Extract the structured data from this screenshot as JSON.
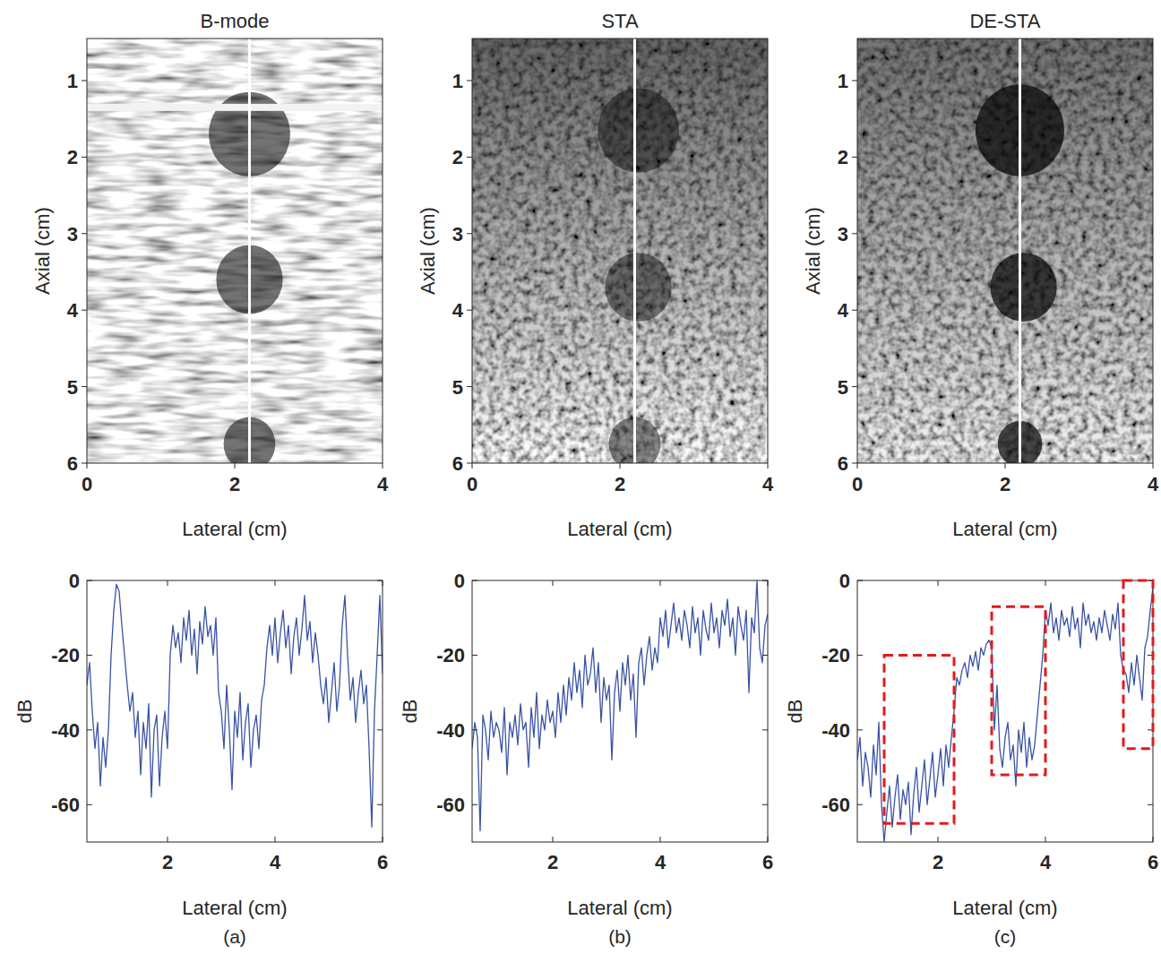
{
  "chart_data": [
    {
      "type": "image",
      "title": "B-mode",
      "x_label": "Lateral (cm)",
      "y_label": "Axial (cm)",
      "xlim": [
        0,
        4
      ],
      "ylim": [
        0.45,
        6
      ],
      "xticks": [
        0,
        2,
        4
      ],
      "yticks": [
        1,
        2,
        3,
        4,
        5,
        6
      ],
      "line_x": 2.2,
      "bright_line_z": 1.35,
      "cysts": [
        {
          "x": 2.2,
          "z": 1.7,
          "r": 0.55
        },
        {
          "x": 2.2,
          "z": 3.6,
          "r": 0.45
        },
        {
          "x": 2.2,
          "z": 5.75,
          "r": 0.35
        }
      ]
    },
    {
      "type": "image",
      "title": "STA",
      "x_label": "Lateral (cm)",
      "y_label": "Axial (cm)",
      "xlim": [
        0,
        4
      ],
      "ylim": [
        0.45,
        6
      ],
      "xticks": [
        0,
        2,
        4
      ],
      "yticks": [
        1,
        2,
        3,
        4,
        5,
        6
      ],
      "line_x": 2.2,
      "cysts": [
        {
          "x": 2.25,
          "z": 1.65,
          "r": 0.55
        },
        {
          "x": 2.25,
          "z": 3.7,
          "r": 0.45
        },
        {
          "x": 2.2,
          "z": 5.75,
          "r": 0.35
        }
      ]
    },
    {
      "type": "image",
      "title": "DE-STA",
      "x_label": "Lateral (cm)",
      "y_label": "Axial (cm)",
      "xlim": [
        0,
        4
      ],
      "ylim": [
        0.45,
        6
      ],
      "xticks": [
        0,
        2,
        4
      ],
      "yticks": [
        1,
        2,
        3,
        4,
        5,
        6
      ],
      "line_x": 2.2,
      "cysts": [
        {
          "x": 2.2,
          "z": 1.65,
          "r": 0.6
        },
        {
          "x": 2.25,
          "z": 3.7,
          "r": 0.45
        },
        {
          "x": 2.2,
          "z": 5.75,
          "r": 0.3
        }
      ]
    },
    {
      "type": "line",
      "x_label": "Lateral (cm)",
      "y_label": "dB",
      "panel_label": "(a)",
      "color": "#3a53a4",
      "xlim": [
        0.5,
        6
      ],
      "ylim": [
        -70,
        0
      ],
      "xticks": [
        2,
        4,
        6
      ],
      "yticks": [
        -60,
        -40,
        -20,
        0
      ],
      "x": [
        0.5,
        0.55,
        0.6,
        0.65,
        0.7,
        0.75,
        0.8,
        0.85,
        0.9,
        0.95,
        1,
        1.05,
        1.1,
        1.15,
        1.2,
        1.25,
        1.3,
        1.35,
        1.4,
        1.45,
        1.5,
        1.55,
        1.6,
        1.65,
        1.7,
        1.75,
        1.8,
        1.85,
        1.9,
        1.95,
        2,
        2.05,
        2.1,
        2.15,
        2.2,
        2.25,
        2.3,
        2.35,
        2.4,
        2.45,
        2.5,
        2.55,
        2.6,
        2.65,
        2.7,
        2.75,
        2.8,
        2.85,
        2.9,
        2.95,
        3,
        3.05,
        3.1,
        3.15,
        3.2,
        3.25,
        3.3,
        3.35,
        3.4,
        3.45,
        3.5,
        3.55,
        3.6,
        3.65,
        3.7,
        3.75,
        3.8,
        3.85,
        3.9,
        3.95,
        4,
        4.05,
        4.1,
        4.15,
        4.2,
        4.25,
        4.3,
        4.35,
        4.4,
        4.45,
        4.5,
        4.55,
        4.6,
        4.65,
        4.7,
        4.75,
        4.8,
        4.85,
        4.9,
        4.95,
        5,
        5.05,
        5.1,
        5.15,
        5.2,
        5.25,
        5.3,
        5.35,
        5.4,
        5.45,
        5.5,
        5.55,
        5.6,
        5.65,
        5.7,
        5.75,
        5.8,
        5.85,
        5.9,
        5.95,
        6
      ],
      "values": [
        -28,
        -22,
        -35,
        -45,
        -38,
        -55,
        -42,
        -50,
        -40,
        -20,
        -8,
        -1,
        -3,
        -12,
        -20,
        -28,
        -35,
        -30,
        -42,
        -35,
        -52,
        -38,
        -45,
        -33,
        -58,
        -40,
        -36,
        -55,
        -42,
        -35,
        -45,
        -20,
        -12,
        -18,
        -14,
        -22,
        -10,
        -16,
        -8,
        -20,
        -13,
        -25,
        -11,
        -17,
        -7,
        -15,
        -12,
        -20,
        -10,
        -30,
        -35,
        -45,
        -28,
        -40,
        -56,
        -35,
        -42,
        -30,
        -48,
        -38,
        -33,
        -50,
        -40,
        -36,
        -45,
        -32,
        -28,
        -18,
        -12,
        -20,
        -10,
        -22,
        -14,
        -8,
        -18,
        -12,
        -25,
        -15,
        -10,
        -20,
        -13,
        -4,
        -16,
        -11,
        -22,
        -14,
        -20,
        -28,
        -33,
        -26,
        -38,
        -30,
        -22,
        -35,
        -28,
        -12,
        -4,
        -20,
        -32,
        -26,
        -38,
        -30,
        -24,
        -33,
        -28,
        -45,
        -66,
        -35,
        -20,
        -4,
        -25
      ]
    },
    {
      "type": "line",
      "x_label": "Lateral (cm)",
      "y_label": "dB",
      "panel_label": "(b)",
      "color": "#3a53a4",
      "xlim": [
        0.5,
        6
      ],
      "ylim": [
        -70,
        0
      ],
      "xticks": [
        2,
        4,
        6
      ],
      "yticks": [
        -60,
        -40,
        -20,
        0
      ],
      "x": [
        0.5,
        0.55,
        0.6,
        0.65,
        0.7,
        0.75,
        0.8,
        0.85,
        0.9,
        0.95,
        1,
        1.05,
        1.1,
        1.15,
        1.2,
        1.25,
        1.3,
        1.35,
        1.4,
        1.45,
        1.5,
        1.55,
        1.6,
        1.65,
        1.7,
        1.75,
        1.8,
        1.85,
        1.9,
        1.95,
        2,
        2.05,
        2.1,
        2.15,
        2.2,
        2.25,
        2.3,
        2.35,
        2.4,
        2.45,
        2.5,
        2.55,
        2.6,
        2.65,
        2.7,
        2.75,
        2.8,
        2.85,
        2.9,
        2.95,
        3,
        3.05,
        3.1,
        3.15,
        3.2,
        3.25,
        3.3,
        3.35,
        3.4,
        3.45,
        3.5,
        3.55,
        3.6,
        3.65,
        3.7,
        3.75,
        3.8,
        3.85,
        3.9,
        3.95,
        4,
        4.05,
        4.1,
        4.15,
        4.2,
        4.25,
        4.3,
        4.35,
        4.4,
        4.45,
        4.5,
        4.55,
        4.6,
        4.65,
        4.7,
        4.75,
        4.8,
        4.85,
        4.9,
        4.95,
        5,
        5.05,
        5.1,
        5.15,
        5.2,
        5.25,
        5.3,
        5.35,
        5.4,
        5.45,
        5.5,
        5.55,
        5.6,
        5.65,
        5.7,
        5.75,
        5.8,
        5.85,
        5.9,
        5.95,
        6
      ],
      "values": [
        -45,
        -38,
        -42,
        -67,
        -36,
        -40,
        -48,
        -35,
        -42,
        -38,
        -40,
        -46,
        -34,
        -52,
        -38,
        -42,
        -36,
        -44,
        -33,
        -40,
        -38,
        -50,
        -34,
        -42,
        -30,
        -45,
        -36,
        -40,
        -32,
        -38,
        -35,
        -42,
        -30,
        -38,
        -28,
        -36,
        -26,
        -32,
        -22,
        -30,
        -24,
        -34,
        -20,
        -28,
        -25,
        -18,
        -30,
        -22,
        -38,
        -26,
        -32,
        -28,
        -48,
        -30,
        -24,
        -35,
        -22,
        -28,
        -20,
        -32,
        -25,
        -42,
        -22,
        -18,
        -28,
        -20,
        -15,
        -24,
        -18,
        -22,
        -10,
        -15,
        -8,
        -18,
        -12,
        -6,
        -14,
        -10,
        -16,
        -8,
        -12,
        -18,
        -7,
        -14,
        -10,
        -20,
        -8,
        -13,
        -16,
        -6,
        -14,
        -10,
        -18,
        -8,
        -12,
        -5,
        -15,
        -10,
        -20,
        -7,
        -12,
        -16,
        -8,
        -30,
        -10,
        -14,
        0,
        -18,
        -22,
        -12,
        -9
      ]
    },
    {
      "type": "line",
      "x_label": "Lateral (cm)",
      "y_label": "dB",
      "panel_label": "(c)",
      "color": "#3a53a4",
      "xlim": [
        0.5,
        6
      ],
      "ylim": [
        -70,
        0
      ],
      "xticks": [
        2,
        4,
        6
      ],
      "yticks": [
        -60,
        -40,
        -20,
        0
      ],
      "x": [
        0.5,
        0.55,
        0.6,
        0.65,
        0.7,
        0.75,
        0.8,
        0.85,
        0.9,
        0.95,
        1,
        1.05,
        1.1,
        1.15,
        1.2,
        1.25,
        1.3,
        1.35,
        1.4,
        1.45,
        1.5,
        1.55,
        1.6,
        1.65,
        1.7,
        1.75,
        1.8,
        1.85,
        1.9,
        1.95,
        2,
        2.05,
        2.1,
        2.15,
        2.2,
        2.25,
        2.3,
        2.35,
        2.4,
        2.45,
        2.5,
        2.55,
        2.6,
        2.65,
        2.7,
        2.75,
        2.8,
        2.85,
        2.9,
        2.95,
        3,
        3.05,
        3.1,
        3.15,
        3.2,
        3.25,
        3.3,
        3.35,
        3.4,
        3.45,
        3.5,
        3.55,
        3.6,
        3.65,
        3.7,
        3.75,
        3.8,
        3.85,
        3.9,
        3.95,
        4,
        4.05,
        4.1,
        4.15,
        4.2,
        4.25,
        4.3,
        4.35,
        4.4,
        4.45,
        4.5,
        4.55,
        4.6,
        4.65,
        4.7,
        4.75,
        4.8,
        4.85,
        4.9,
        4.95,
        5,
        5.05,
        5.1,
        5.15,
        5.2,
        5.25,
        5.3,
        5.35,
        5.4,
        5.45,
        5.5,
        5.55,
        5.6,
        5.65,
        5.7,
        5.75,
        5.8,
        5.85,
        5.9,
        5.95,
        6
      ],
      "values": [
        -48,
        -42,
        -55,
        -46,
        -50,
        -58,
        -44,
        -52,
        -38,
        -60,
        -70,
        -62,
        -55,
        -66,
        -58,
        -52,
        -64,
        -56,
        -60,
        -54,
        -68,
        -57,
        -50,
        -62,
        -55,
        -48,
        -60,
        -53,
        -46,
        -58,
        -52,
        -45,
        -55,
        -44,
        -50,
        -42,
        -35,
        -26,
        -28,
        -24,
        -22,
        -26,
        -20,
        -23,
        -19,
        -24,
        -18,
        -20,
        -17,
        -16,
        -18,
        -40,
        -28,
        -45,
        -50,
        -42,
        -38,
        -48,
        -44,
        -55,
        -40,
        -46,
        -38,
        -50,
        -42,
        -48,
        -44,
        -36,
        -28,
        -20,
        -8,
        -12,
        -6,
        -14,
        -10,
        -16,
        -8,
        -12,
        -10,
        -15,
        -7,
        -13,
        -10,
        -18,
        -6,
        -12,
        -9,
        -14,
        -11,
        -16,
        -10,
        -14,
        -8,
        -12,
        -16,
        -9,
        -13,
        -6,
        -20,
        -24,
        -25,
        -30,
        -22,
        -28,
        -20,
        -26,
        -32,
        -18,
        -15,
        -8,
        -2
      ],
      "boxes": [
        {
          "x0": 1.0,
          "x1": 2.3,
          "y0": -65,
          "y1": -20
        },
        {
          "x0": 3.0,
          "x1": 4.0,
          "y0": -52,
          "y1": -7
        },
        {
          "x0": 5.45,
          "x1": 6.0,
          "y0": -45,
          "y1": 0
        }
      ]
    }
  ]
}
